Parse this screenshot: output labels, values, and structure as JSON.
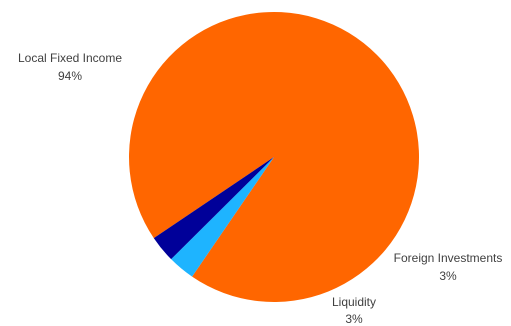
{
  "chart_data": {
    "type": "pie",
    "slices": [
      {
        "label": "Local Fixed Income",
        "value": 94,
        "value_label": "94%",
        "color": "#FF6600"
      },
      {
        "label": "Foreign Investments",
        "value": 3,
        "value_label": "3%",
        "color": "#1EB4FF"
      },
      {
        "label": "Liquidity",
        "value": 3,
        "value_label": "3%",
        "color": "#000099"
      }
    ],
    "start_angle_deg": 146,
    "direction": "clockwise",
    "legend": "none",
    "data_labels": "outside"
  }
}
